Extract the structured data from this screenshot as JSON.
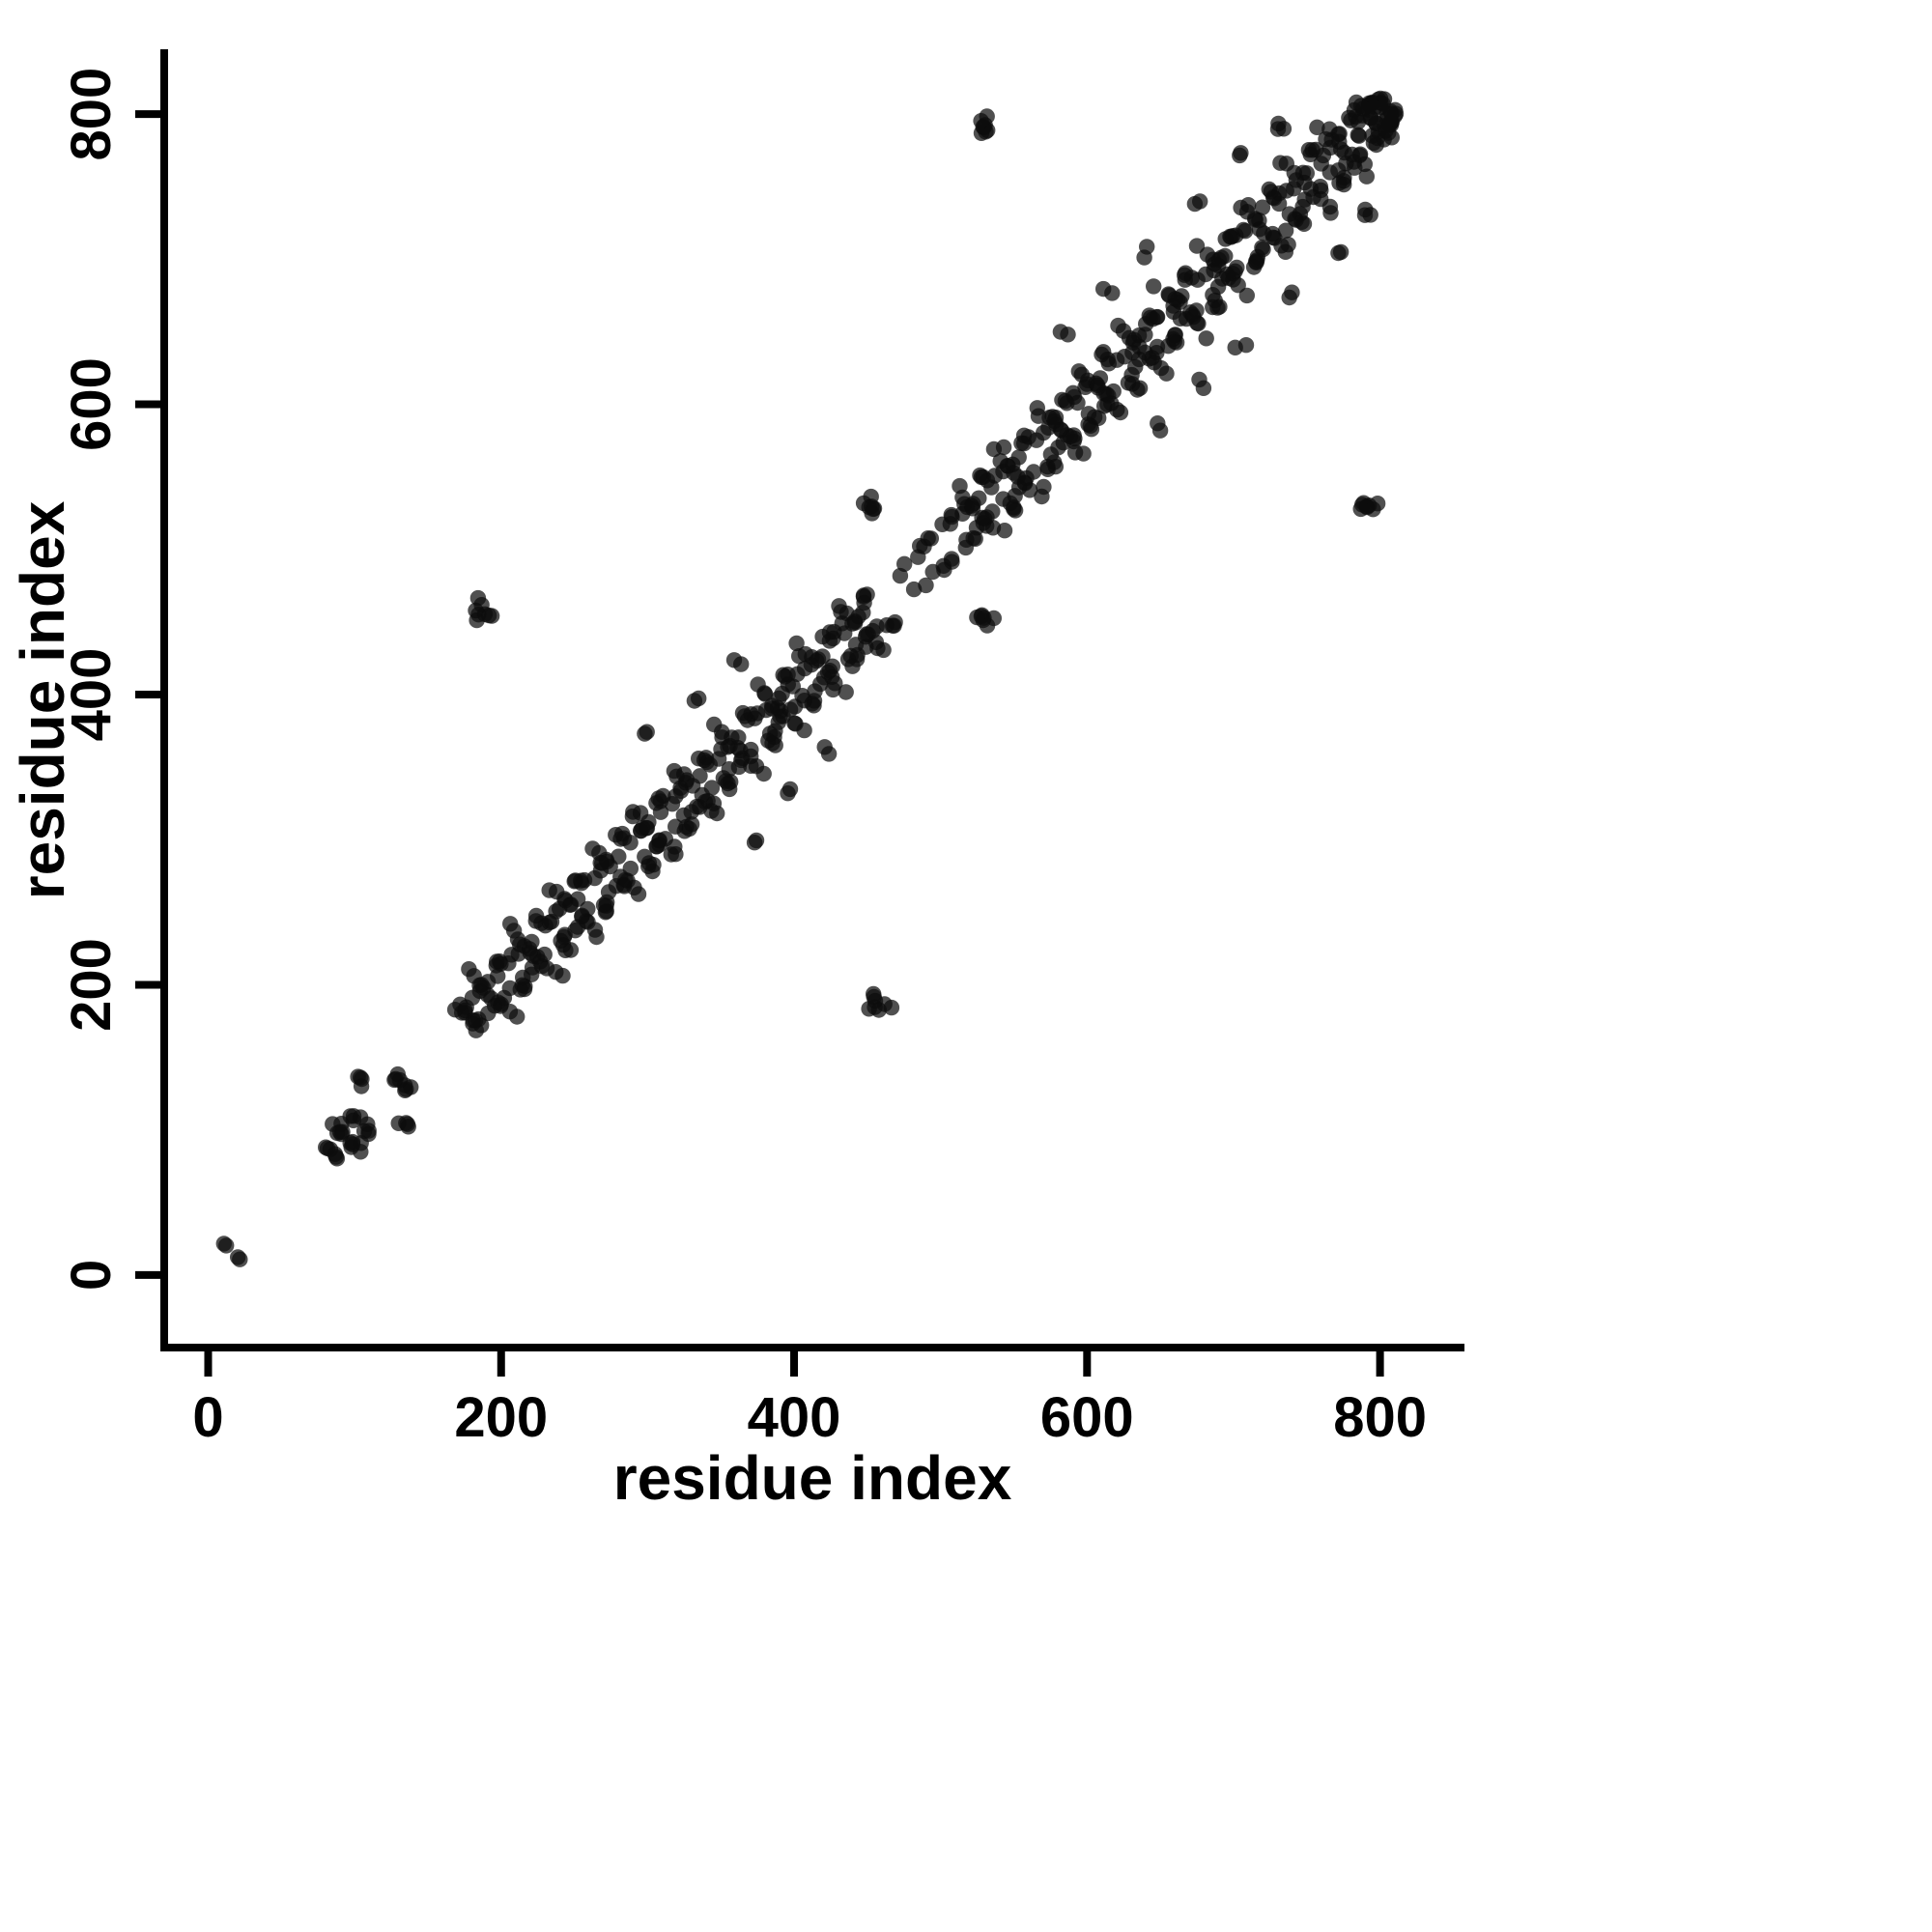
{
  "chart_data": {
    "type": "scatter",
    "xlabel": "residue index",
    "ylabel": "residue index",
    "xticks": [
      0,
      200,
      400,
      600,
      800
    ],
    "yticks": [
      0,
      200,
      400,
      600,
      800
    ],
    "xlim": [
      -30,
      855
    ],
    "ylim": [
      -50,
      842
    ],
    "grid": false,
    "legend": "none",
    "background_color": "#ffffff",
    "point_color": "#0d0d0d",
    "point_opacity": 0.72,
    "symmetric_about_diagonal": true,
    "clusters_format": "[center_i, center_j, n_points, spread] — blob of contacts, mirrored across diagonal",
    "clusters": [
      [
        13,
        20,
        2,
        3
      ],
      [
        81,
        88,
        3,
        4
      ],
      [
        91,
        99,
        4,
        4
      ],
      [
        100,
        110,
        4,
        4
      ],
      [
        130,
        138,
        4,
        4
      ],
      [
        104,
        133,
        4,
        5
      ],
      [
        88,
        104,
        2,
        4
      ],
      [
        174,
        182,
        5,
        5
      ],
      [
        198,
        216,
        4,
        5
      ],
      [
        226,
        244,
        4,
        5
      ],
      [
        254,
        272,
        4,
        5
      ],
      [
        282,
        300,
        4,
        5
      ],
      [
        310,
        328,
        4,
        5
      ],
      [
        338,
        356,
        4,
        5
      ],
      [
        366,
        384,
        4,
        5
      ],
      [
        394,
        412,
        4,
        5
      ],
      [
        422,
        440,
        4,
        5
      ],
      [
        450,
        468,
        4,
        5
      ],
      [
        530,
        548,
        4,
        5
      ],
      [
        558,
        576,
        4,
        5
      ],
      [
        586,
        604,
        4,
        5
      ],
      [
        614,
        632,
        4,
        5
      ],
      [
        642,
        660,
        4,
        5
      ],
      [
        670,
        688,
        4,
        5
      ],
      [
        698,
        716,
        4,
        5
      ],
      [
        726,
        744,
        4,
        5
      ],
      [
        754,
        772,
        4,
        5
      ],
      [
        780,
        798,
        4,
        5
      ],
      [
        796,
        808,
        5,
        4
      ],
      [
        800,
        809,
        6,
        4
      ],
      [
        185,
        458,
        8,
        9
      ],
      [
        530,
        791,
        8,
        8
      ],
      [
        452,
        529,
        7,
        8
      ],
      [
        300,
        377,
        2,
        5
      ],
      [
        334,
        397,
        2,
        5
      ],
      [
        363,
        421,
        2,
        5
      ],
      [
        586,
        648,
        2,
        5
      ],
      [
        612,
        679,
        2,
        5
      ],
      [
        640,
        703,
        2,
        5
      ],
      [
        678,
        741,
        2,
        5
      ],
      [
        705,
        772,
        2,
        5
      ],
      [
        736,
        790,
        3,
        5
      ]
    ],
    "streaks_format": "[i_start, j_start, i_end, j_end, n_points, spread] — short line of contacts, mirrored across diagonal",
    "streaks": [
      [
        176,
        186,
        194,
        204,
        6,
        4
      ],
      [
        204,
        214,
        222,
        232,
        6,
        4
      ],
      [
        232,
        242,
        250,
        260,
        6,
        4
      ],
      [
        260,
        270,
        278,
        288,
        6,
        4
      ],
      [
        288,
        298,
        306,
        316,
        6,
        4
      ],
      [
        316,
        326,
        334,
        344,
        6,
        4
      ],
      [
        344,
        354,
        362,
        372,
        6,
        4
      ],
      [
        372,
        382,
        390,
        400,
        6,
        4
      ],
      [
        400,
        410,
        418,
        428,
        6,
        4
      ],
      [
        428,
        438,
        446,
        456,
        6,
        4
      ],
      [
        178,
        210,
        192,
        196,
        5,
        4
      ],
      [
        206,
        238,
        220,
        224,
        5,
        4
      ],
      [
        234,
        266,
        248,
        252,
        5,
        4
      ],
      [
        262,
        294,
        276,
        280,
        5,
        4
      ],
      [
        290,
        322,
        304,
        308,
        5,
        4
      ],
      [
        318,
        350,
        332,
        336,
        5,
        4
      ],
      [
        346,
        378,
        360,
        364,
        5,
        4
      ],
      [
        374,
        406,
        388,
        392,
        5,
        4
      ],
      [
        402,
        434,
        416,
        420,
        5,
        4
      ],
      [
        430,
        462,
        444,
        448,
        5,
        4
      ],
      [
        508,
        518,
        526,
        536,
        6,
        4
      ],
      [
        536,
        546,
        554,
        564,
        6,
        4
      ],
      [
        564,
        574,
        582,
        592,
        6,
        4
      ],
      [
        592,
        602,
        610,
        620,
        6,
        4
      ],
      [
        620,
        630,
        638,
        648,
        6,
        4
      ],
      [
        648,
        658,
        666,
        676,
        6,
        4
      ],
      [
        676,
        686,
        694,
        704,
        6,
        4
      ],
      [
        704,
        714,
        722,
        732,
        6,
        4
      ],
      [
        732,
        742,
        750,
        760,
        6,
        4
      ],
      [
        758,
        768,
        776,
        786,
        6,
        4
      ],
      [
        782,
        790,
        798,
        806,
        6,
        4
      ],
      [
        510,
        542,
        524,
        528,
        5,
        4
      ],
      [
        538,
        570,
        552,
        556,
        5,
        4
      ],
      [
        566,
        598,
        580,
        584,
        5,
        4
      ],
      [
        594,
        626,
        608,
        612,
        5,
        4
      ],
      [
        622,
        654,
        636,
        640,
        5,
        4
      ],
      [
        650,
        682,
        664,
        668,
        5,
        4
      ],
      [
        678,
        710,
        692,
        696,
        5,
        4
      ],
      [
        706,
        738,
        720,
        724,
        5,
        4
      ],
      [
        734,
        766,
        748,
        752,
        5,
        4
      ],
      [
        760,
        792,
        774,
        778,
        5,
        4
      ],
      [
        784,
        810,
        794,
        798,
        4,
        3
      ],
      [
        470,
        482,
        496,
        508,
        5,
        3
      ],
      [
        486,
        504,
        506,
        524,
        4,
        3
      ]
    ]
  }
}
